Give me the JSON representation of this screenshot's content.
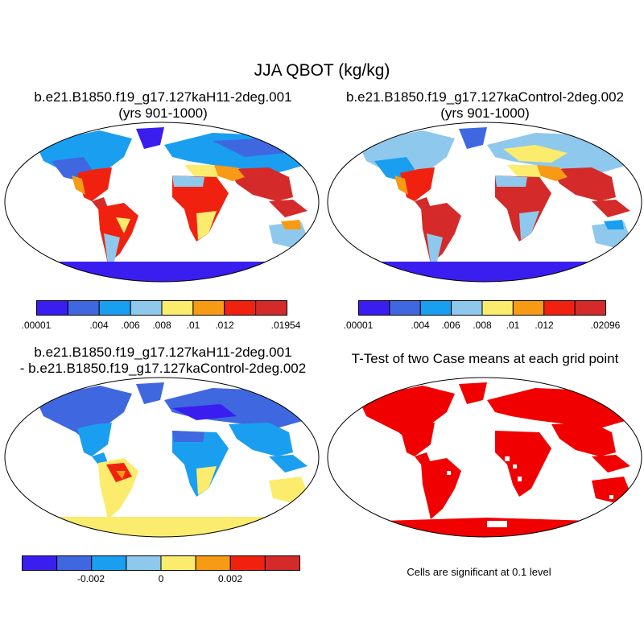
{
  "main_title": "JJA QBOT (kg/kg)",
  "panels": [
    {
      "title_line1": "b.e21.B1850.f19_g17.127kaH11-2deg.001",
      "title_line2": "(yrs 901-1000)"
    },
    {
      "title_line1": "b.e21.B1850.f19_g17.127kaControl-2deg.002",
      "title_line2": "(yrs 901-1000)"
    },
    {
      "title_line1": "b.e21.B1850.f19_g17.127kaH11-2deg.001",
      "title_line2": "- b.e21.B1850.f19_g17.127kaControl-2deg.002"
    },
    {
      "title_line1": "T-Test of two Case means at each grid point",
      "title_line2": ""
    }
  ],
  "colorbar1": {
    "colors": [
      "#3a1ef0",
      "#3f67e0",
      "#1a9ff0",
      "#8ec8ec",
      "#fbec6e",
      "#f79a14",
      "#f0220f",
      "#d42a2a"
    ],
    "labels": [
      ".00001",
      ".004",
      ".006",
      ".008",
      ".01",
      ".012",
      ".01954"
    ]
  },
  "colorbar2": {
    "colors": [
      "#3a1ef0",
      "#3f67e0",
      "#1a9ff0",
      "#8ec8ec",
      "#fbec6e",
      "#f79a14",
      "#f0220f",
      "#d42a2a"
    ],
    "labels": [
      ".00001",
      ".004",
      ".006",
      ".008",
      ".01",
      ".012",
      ".02096"
    ]
  },
  "colorbar3": {
    "colors": [
      "#3a1ef0",
      "#3f67e0",
      "#1a9ff0",
      "#8ec8ec",
      "#fbec6e",
      "#f79a14",
      "#f0220f",
      "#d42a2a"
    ],
    "labels": [
      "-0.002",
      "0",
      "0.002"
    ]
  },
  "significance_note": "Cells are significant at 0.1 level",
  "map_colors": {
    "ocean": "#ffffff",
    "outline": "#000000",
    "significant": "#f00000"
  }
}
